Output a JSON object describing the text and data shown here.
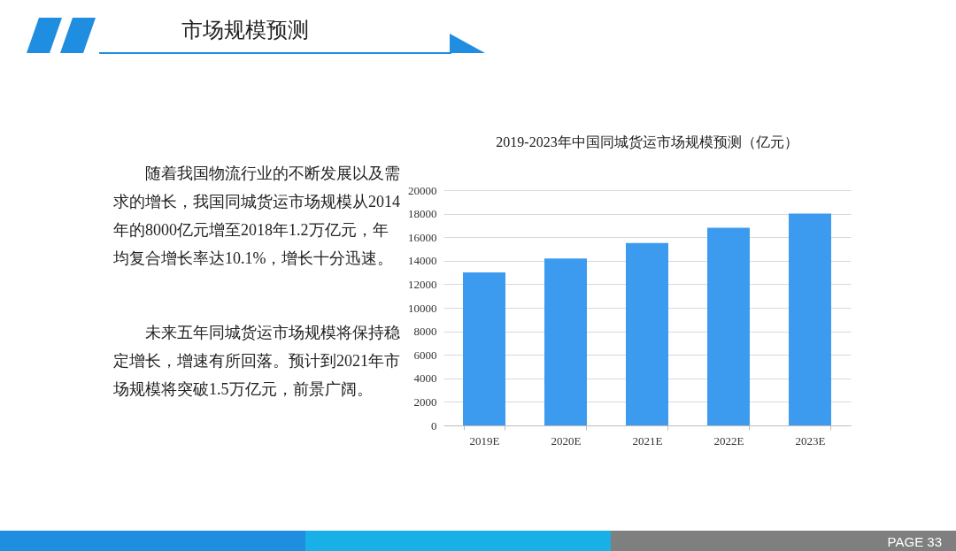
{
  "chart_data": {
    "type": "bar",
    "title": "2019-2023年中国同城货运市场规模预测（亿元）",
    "categories": [
      "2019E",
      "2020E",
      "2021E",
      "2022E",
      "2023E"
    ],
    "values": [
      13000,
      14200,
      15500,
      16800,
      18000
    ],
    "color": "#3d9bef",
    "ylim": [
      0,
      20000
    ],
    "yticks": [
      0,
      2000,
      4000,
      6000,
      8000,
      10000,
      12000,
      14000,
      16000,
      18000,
      20000
    ],
    "grid": "y",
    "annotations": [
      "市场规模预测",
      "随着我国物流行业的不断发展以及需求的增长，我国同城货运市场规模从2014年的8000亿元增至2018年1.2万亿元，年均复合增长率达10.1%，增长十分迅速。",
      "未来五年同城货运市场规模将保持稳定增长，增速有所回落。预计到2021年市场规模将突破1.5万亿元，前景广阔。",
      "PAGE 33"
    ]
  }
}
